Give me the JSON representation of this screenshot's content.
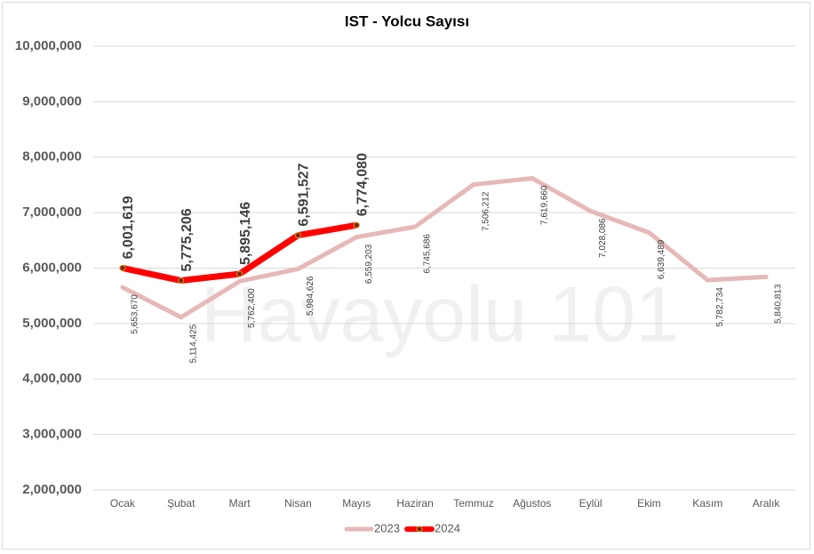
{
  "chart_data": {
    "type": "line",
    "title": "IST - Yolcu Sayısı",
    "watermark": "Havayolu 101",
    "categories": [
      "Ocak",
      "Şubat",
      "Mart",
      "Nisan",
      "Mayıs",
      "Haziran",
      "Temmuz",
      "Ağustos",
      "Eylül",
      "Ekim",
      "Kasım",
      "Aralık"
    ],
    "series": [
      {
        "name": "2023",
        "color": "#e6b8b7",
        "values": [
          5653670,
          5114425,
          5762400,
          5984626,
          6559203,
          6745686,
          7506212,
          7619660,
          7028086,
          6639489,
          5782734,
          5840813
        ],
        "value_labels": [
          "5,653,670",
          "5,114,425",
          "5,762,400",
          "5,984,626",
          "6,559,203",
          "6,745,686",
          "7,506,212",
          "7,619,660",
          "7,028,086",
          "6,639,489",
          "5,782,734",
          "5,840,813"
        ]
      },
      {
        "name": "2024",
        "color": "#ff0000",
        "values": [
          6001619,
          5775206,
          5895146,
          6591527,
          6774080,
          null,
          null,
          null,
          null,
          null,
          null,
          null
        ],
        "value_labels": [
          "6,001,619",
          "5,775,206",
          "5,895,146",
          "6,591,527",
          "6,774,080",
          null,
          null,
          null,
          null,
          null,
          null,
          null
        ]
      }
    ],
    "ylim": [
      2000000,
      10000000
    ],
    "yticks": [
      {
        "value": 2000000,
        "label": "2,000,000"
      },
      {
        "value": 3000000,
        "label": "3,000,000"
      },
      {
        "value": 4000000,
        "label": "4,000,000"
      },
      {
        "value": 5000000,
        "label": "5,000,000"
      },
      {
        "value": 6000000,
        "label": "6,000,000"
      },
      {
        "value": 7000000,
        "label": "7,000,000"
      },
      {
        "value": 8000000,
        "label": "8,000,000"
      },
      {
        "value": 9000000,
        "label": "9,000,000"
      },
      {
        "value": 10000000,
        "label": "10,000,000"
      }
    ],
    "grid": true,
    "legend": "bottom"
  }
}
